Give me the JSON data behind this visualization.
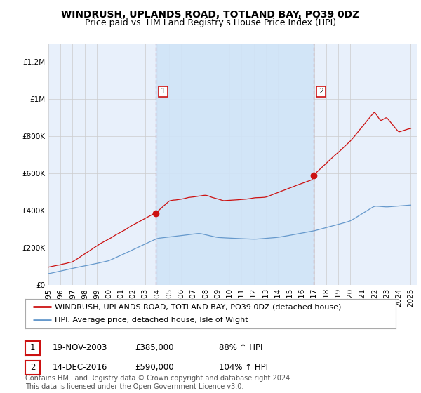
{
  "title": "WINDRUSH, UPLANDS ROAD, TOTLAND BAY, PO39 0DZ",
  "subtitle": "Price paid vs. HM Land Registry's House Price Index (HPI)",
  "legend_line1": "WINDRUSH, UPLANDS ROAD, TOTLAND BAY, PO39 0DZ (detached house)",
  "legend_line2": "HPI: Average price, detached house, Isle of Wight",
  "annotation1_label": "1",
  "annotation1_date": "19-NOV-2003",
  "annotation1_price": "£385,000",
  "annotation1_hpi": "88% ↑ HPI",
  "annotation1_year": 2003.88,
  "annotation1_value": 385000,
  "annotation2_label": "2",
  "annotation2_date": "14-DEC-2016",
  "annotation2_price": "£590,000",
  "annotation2_hpi": "104% ↑ HPI",
  "annotation2_year": 2016.96,
  "annotation2_value": 590000,
  "footer": "Contains HM Land Registry data © Crown copyright and database right 2024.\nThis data is licensed under the Open Government Licence v3.0.",
  "ylim": [
    0,
    1300000
  ],
  "yticks": [
    0,
    200000,
    400000,
    600000,
    800000,
    1000000,
    1200000
  ],
  "ytick_labels": [
    "£0",
    "£200K",
    "£400K",
    "£600K",
    "£800K",
    "£1M",
    "£1.2M"
  ],
  "plot_bg": "#e8f0fb",
  "shade_color": "#d0e4f7",
  "red_line_color": "#cc1111",
  "blue_line_color": "#6699cc",
  "grid_color": "#cccccc",
  "title_fontsize": 10,
  "subtitle_fontsize": 9,
  "tick_fontsize": 7.5,
  "legend_fontsize": 8,
  "footer_fontsize": 7
}
